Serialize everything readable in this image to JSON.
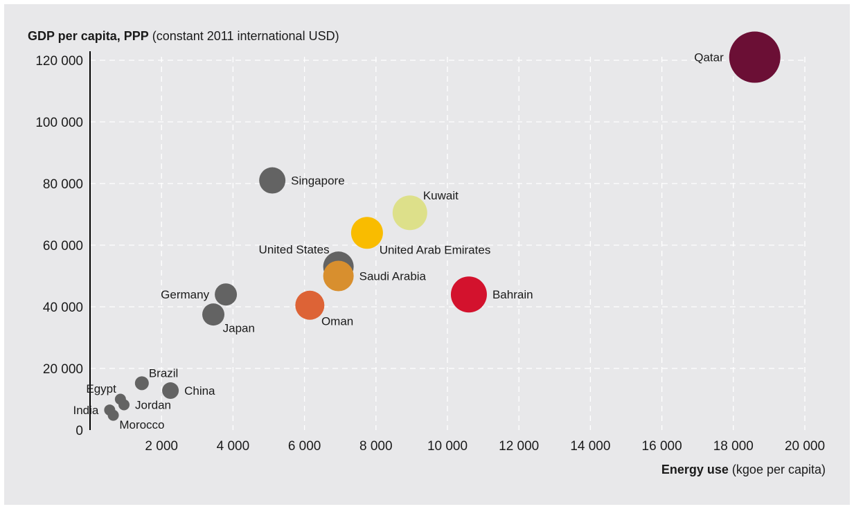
{
  "chart_data": {
    "type": "scatter",
    "title": "",
    "ylabel_bold": "GDP per capita, PPP",
    "ylabel_rest": " (constant 2011 international USD)",
    "xlabel_bold": "Energy use",
    "xlabel_rest": " (kgoe per capita)",
    "xlim": [
      0,
      20000
    ],
    "ylim": [
      0,
      120000
    ],
    "x_ticks": [
      2000,
      4000,
      6000,
      8000,
      10000,
      12000,
      14000,
      16000,
      18000,
      20000
    ],
    "x_tick_labels": [
      "2 000",
      "4 000",
      "6 000",
      "8 000",
      "10 000",
      "12 000",
      "14 000",
      "16 000",
      "18 000",
      "20 000"
    ],
    "y_ticks": [
      0,
      20000,
      40000,
      60000,
      80000,
      100000,
      120000
    ],
    "y_tick_labels": [
      "0",
      "20 000",
      "40 000",
      "60 000",
      "80 000",
      "100 000",
      "120 000"
    ],
    "grid": true,
    "points": [
      {
        "label": "Qatar",
        "x": 18600,
        "y": 121000,
        "color": "#6b0f35",
        "size": 37,
        "anchor": "left"
      },
      {
        "label": "Singapore",
        "x": 5100,
        "y": 81000,
        "color": "#636363",
        "size": 19,
        "anchor": "right"
      },
      {
        "label": "Kuwait",
        "x": 8950,
        "y": 70500,
        "color": "#dde08a",
        "size": 25,
        "anchor": "above-right"
      },
      {
        "label": "United Arab Emirates",
        "x": 7750,
        "y": 64000,
        "color": "#f9bc00",
        "size": 23,
        "anchor": "below-right"
      },
      {
        "label": "United States",
        "x": 6950,
        "y": 53000,
        "color": "#636363",
        "size": 22,
        "anchor": "above-left"
      },
      {
        "label": "Saudi Arabia",
        "x": 6950,
        "y": 50000,
        "color": "#d88f2e",
        "size": 22,
        "anchor": "right"
      },
      {
        "label": "Bahrain",
        "x": 10600,
        "y": 44000,
        "color": "#d3122d",
        "size": 26,
        "anchor": "right"
      },
      {
        "label": "Oman",
        "x": 6150,
        "y": 40500,
        "color": "#dd6336",
        "size": 21,
        "anchor": "below-right"
      },
      {
        "label": "Germany",
        "x": 3800,
        "y": 44000,
        "color": "#636363",
        "size": 16,
        "anchor": "left"
      },
      {
        "label": "Japan",
        "x": 3450,
        "y": 37500,
        "color": "#636363",
        "size": 16,
        "anchor": "below-right"
      },
      {
        "label": "Brazil",
        "x": 1450,
        "y": 15200,
        "color": "#636363",
        "size": 10,
        "anchor": "above-right"
      },
      {
        "label": "China",
        "x": 2250,
        "y": 12800,
        "color": "#636363",
        "size": 12,
        "anchor": "right"
      },
      {
        "label": "Egypt",
        "x": 850,
        "y": 10000,
        "color": "#636363",
        "size": 8,
        "anchor": "above-left"
      },
      {
        "label": "Jordan",
        "x": 950,
        "y": 8200,
        "color": "#636363",
        "size": 8,
        "anchor": "right"
      },
      {
        "label": "India",
        "x": 550,
        "y": 6500,
        "color": "#636363",
        "size": 8,
        "anchor": "left"
      },
      {
        "label": "Morocco",
        "x": 650,
        "y": 4800,
        "color": "#636363",
        "size": 8,
        "anchor": "below-right"
      }
    ]
  }
}
